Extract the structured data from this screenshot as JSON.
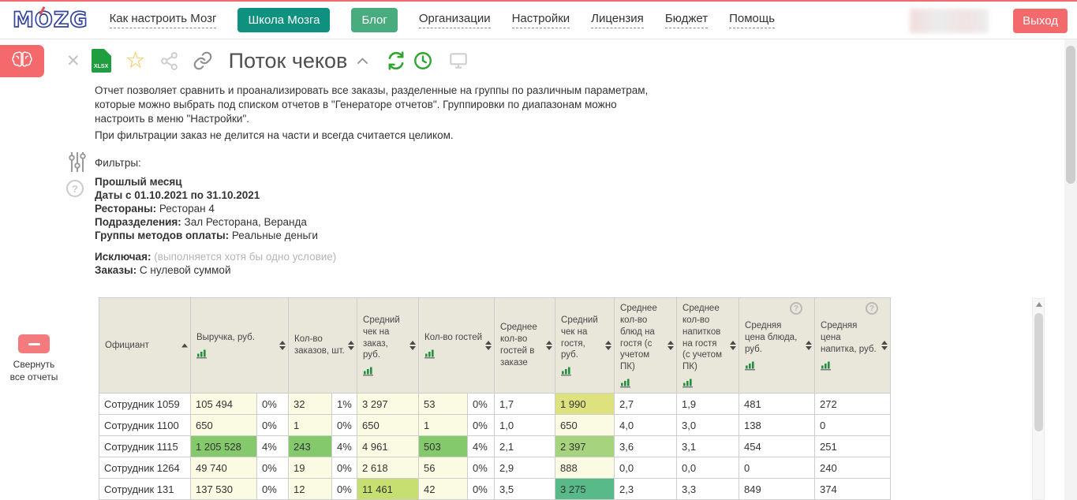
{
  "colors": {
    "accent_red": "#f4696b",
    "teal_button": "#0f9180",
    "green_button": "#48ac7e",
    "table_header_bg": "#e9e6da"
  },
  "nav": {
    "logo_text": "MOZG",
    "items": [
      {
        "label": "Как настроить Мозг"
      },
      {
        "label": "Школа Мозга"
      },
      {
        "label": "Блог"
      },
      {
        "label": "Организации"
      },
      {
        "label": "Настройки"
      },
      {
        "label": "Лицензия"
      },
      {
        "label": "Бюджет"
      },
      {
        "label": "Помощь"
      }
    ],
    "logout_label": "Выход"
  },
  "toolbar": {
    "title": "Поток чеков",
    "export_label": "XLSX"
  },
  "report": {
    "description": [
      "Отчет позволяет сравнить и проанализировать все заказы, разделенные на группы по различным параметрам, которые можно выбрать под списком отчетов в \"Генераторе отчетов\". Группировки по диапазонам можно настроить в меню \"Настройки\".",
      "При фильтрации заказ не делится на части и всегда считается целиком."
    ],
    "filters": {
      "heading": "Фильтры:",
      "period": "Прошлый месяц",
      "dates": "Даты с 01.10.2021 по 31.10.2021",
      "restaurants_label": "Рестораны:",
      "restaurants_value": "Ресторан 4",
      "departments_label": "Подразделения:",
      "departments_value": "Зал Ресторана, Веранда",
      "payment_label": "Группы методов оплаты:",
      "payment_value": "Реальные деньги",
      "excluding_label": "Исключая:",
      "excluding_note": "(выполняется хотя бы одно условие)",
      "orders_label": "Заказы:",
      "orders_value": "С нулевой суммой"
    }
  },
  "sidebar": {
    "collapse_label": "Свернуть все отчеты"
  },
  "table": {
    "palette": {
      "y": "#fbfae3",
      "yg": "#dde27e",
      "lg": "#a6d37e",
      "lg2": "#c6df70",
      "g": "#85c96d",
      "g2": "#58ba89"
    },
    "columns": [
      {
        "label": "Официант",
        "sort": "asc"
      },
      {
        "label": "Выручка, руб.",
        "sort": "both",
        "chart": true,
        "pct": true
      },
      {
        "label": "Кол-во заказов, шт.",
        "sort": "both",
        "pct": true
      },
      {
        "label": "Средний чек на заказ, руб.",
        "sort": "both",
        "chart": true
      },
      {
        "label": "Кол-во гостей",
        "sort": "both",
        "chart": true,
        "pct": true
      },
      {
        "label": "Среднее кол-во гостей в заказе",
        "sort": "both"
      },
      {
        "label": "Средний чек на гостя, руб.",
        "sort": "both",
        "chart": true
      },
      {
        "label": "Среднее кол-во блюд на гостя (с учетом ПК)",
        "sort": "both",
        "chart": true
      },
      {
        "label": "Среднее кол-во напитков на гостя (с учетом ПК)",
        "sort": "both",
        "chart": true
      },
      {
        "label": "Средняя цена блюда, руб.",
        "sort": "both",
        "chart": true,
        "help": true
      },
      {
        "label": "Средняя цена напитка, руб.",
        "sort": "both",
        "chart": true,
        "help": true
      }
    ],
    "rows": [
      {
        "name": "Сотрудник 1059",
        "cells": [
          {
            "v": "105 494",
            "bg": "y"
          },
          {
            "v": "0%"
          },
          {
            "v": "32",
            "bg": "y"
          },
          {
            "v": "1%"
          },
          {
            "v": "3 297",
            "bg": "y"
          },
          {
            "v": "53",
            "bg": "y"
          },
          {
            "v": "0%"
          },
          {
            "v": "1,7"
          },
          {
            "v": "1 990",
            "bg": "yg"
          },
          {
            "v": "2,7"
          },
          {
            "v": "1,9"
          },
          {
            "v": "481"
          },
          {
            "v": "272"
          }
        ]
      },
      {
        "name": "Сотрудник 1100",
        "cells": [
          {
            "v": "650",
            "bg": "y"
          },
          {
            "v": "0%"
          },
          {
            "v": "1",
            "bg": "y"
          },
          {
            "v": "0%"
          },
          {
            "v": "650",
            "bg": "y"
          },
          {
            "v": "1",
            "bg": "y"
          },
          {
            "v": "0%"
          },
          {
            "v": "1,0"
          },
          {
            "v": "650",
            "bg": "y"
          },
          {
            "v": "4,0"
          },
          {
            "v": "3,0"
          },
          {
            "v": "138"
          },
          {
            "v": "0"
          }
        ]
      },
      {
        "name": "Сотрудник 1115",
        "cells": [
          {
            "v": "1 205 528",
            "bg": "g"
          },
          {
            "v": "4%"
          },
          {
            "v": "243",
            "bg": "g"
          },
          {
            "v": "4%"
          },
          {
            "v": "4 961",
            "bg": "y"
          },
          {
            "v": "503",
            "bg": "g"
          },
          {
            "v": "4%"
          },
          {
            "v": "2,1"
          },
          {
            "v": "2 397",
            "bg": "lg"
          },
          {
            "v": "3,6"
          },
          {
            "v": "3,1"
          },
          {
            "v": "454"
          },
          {
            "v": "251"
          }
        ]
      },
      {
        "name": "Сотрудник 1264",
        "cells": [
          {
            "v": "49 740",
            "bg": "y"
          },
          {
            "v": "0%"
          },
          {
            "v": "19",
            "bg": "y"
          },
          {
            "v": "0%"
          },
          {
            "v": "2 618",
            "bg": "y"
          },
          {
            "v": "56",
            "bg": "y"
          },
          {
            "v": "0%"
          },
          {
            "v": "2,9"
          },
          {
            "v": "888",
            "bg": "y"
          },
          {
            "v": "0,0"
          },
          {
            "v": "0,0"
          },
          {
            "v": "0"
          },
          {
            "v": "240"
          }
        ]
      },
      {
        "name": "Сотрудник 131",
        "cells": [
          {
            "v": "137 530",
            "bg": "y"
          },
          {
            "v": "0%"
          },
          {
            "v": "12",
            "bg": "y"
          },
          {
            "v": "0%"
          },
          {
            "v": "11 461",
            "bg": "lg2"
          },
          {
            "v": "42",
            "bg": "y"
          },
          {
            "v": "0%"
          },
          {
            "v": "3,5"
          },
          {
            "v": "3 275",
            "bg": "g2"
          },
          {
            "v": "2,3"
          },
          {
            "v": "3,3"
          },
          {
            "v": "849"
          },
          {
            "v": "374"
          }
        ]
      }
    ]
  }
}
